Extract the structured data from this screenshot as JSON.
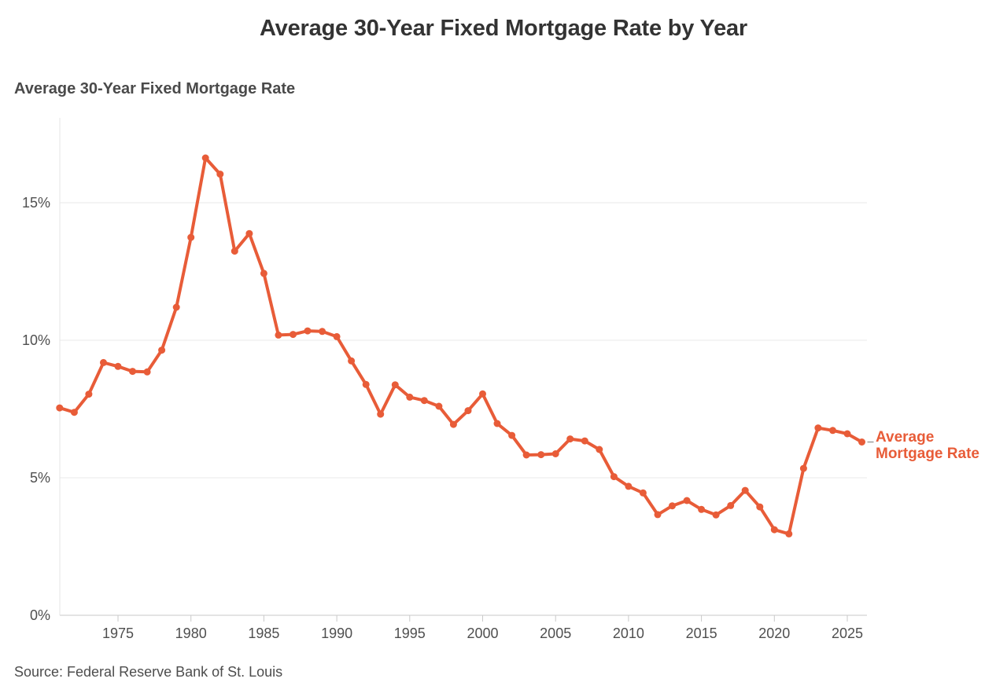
{
  "header": {
    "title": "Average 30-Year Fixed Mortgage Rate by Year"
  },
  "chart": {
    "subtitle": "Average 30-Year Fixed Mortgage Rate",
    "series_label_lines": [
      "Average",
      "Mortgage Rate"
    ],
    "accent_color": "#e85c38"
  },
  "footer": {
    "source": "Source: Federal Reserve Bank of St. Louis"
  },
  "chart_data": {
    "type": "line",
    "title": "Average 30-Year Fixed Mortgage Rate by Year",
    "subtitle": "Average 30-Year Fixed Mortgage Rate",
    "series": [
      {
        "name": "Average Mortgage Rate",
        "x": [
          1971,
          1972,
          1973,
          1974,
          1975,
          1976,
          1977,
          1978,
          1979,
          1980,
          1981,
          1982,
          1983,
          1984,
          1985,
          1986,
          1987,
          1988,
          1989,
          1990,
          1991,
          1992,
          1993,
          1994,
          1995,
          1996,
          1997,
          1998,
          1999,
          2000,
          2001,
          2002,
          2003,
          2004,
          2005,
          2006,
          2007,
          2008,
          2009,
          2010,
          2011,
          2012,
          2013,
          2014,
          2015,
          2016,
          2017,
          2018,
          2019,
          2020,
          2021,
          2022,
          2023,
          2024,
          2025,
          2026
        ],
        "values": [
          7.54,
          7.38,
          8.04,
          9.19,
          9.05,
          8.87,
          8.85,
          9.64,
          11.2,
          13.74,
          16.63,
          16.04,
          13.24,
          13.88,
          12.43,
          10.19,
          10.21,
          10.34,
          10.32,
          10.13,
          9.25,
          8.39,
          7.31,
          8.38,
          7.93,
          7.81,
          7.6,
          6.94,
          7.44,
          8.05,
          6.97,
          6.54,
          5.83,
          5.84,
          5.87,
          6.41,
          6.34,
          6.03,
          5.04,
          4.69,
          4.45,
          3.66,
          3.98,
          4.17,
          3.85,
          3.65,
          3.99,
          4.54,
          3.94,
          3.11,
          2.96,
          5.34,
          6.81,
          6.72,
          6.6,
          6.3
        ]
      }
    ],
    "xlabel": "",
    "ylabel": "",
    "xlim": [
      1971,
      2026
    ],
    "ylim": [
      0,
      18
    ],
    "yticks": [
      {
        "value": 0,
        "label": "0%"
      },
      {
        "value": 5,
        "label": "5%"
      },
      {
        "value": 10,
        "label": "10%"
      },
      {
        "value": 15,
        "label": "15%"
      }
    ],
    "xticks": [
      {
        "value": 1975,
        "label": "1975"
      },
      {
        "value": 1980,
        "label": "1980"
      },
      {
        "value": 1985,
        "label": "1985"
      },
      {
        "value": 1990,
        "label": "1990"
      },
      {
        "value": 1995,
        "label": "1995"
      },
      {
        "value": 2000,
        "label": "2000"
      },
      {
        "value": 2005,
        "label": "2005"
      },
      {
        "value": 2010,
        "label": "2010"
      },
      {
        "value": 2015,
        "label": "2015"
      },
      {
        "value": 2020,
        "label": "2020"
      },
      {
        "value": 2025,
        "label": "2025"
      }
    ],
    "grid": "horizontal-only",
    "legend": "inline-right-of-last-point",
    "line_color": "#e85c38",
    "marker": "circle",
    "source": "Source: Federal Reserve Bank of St. Louis"
  }
}
